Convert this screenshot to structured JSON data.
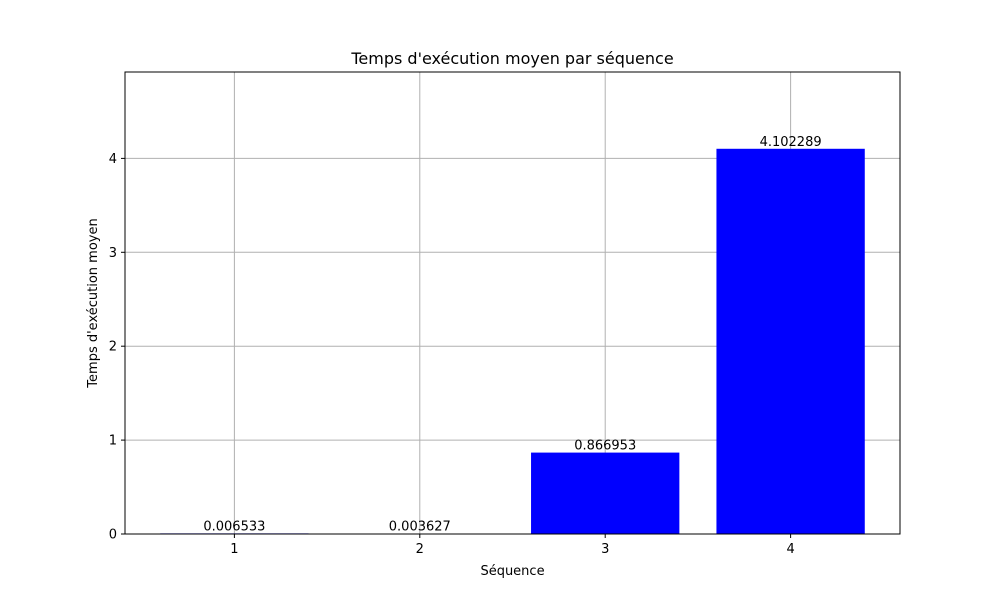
{
  "chart_data": {
    "type": "bar",
    "title": "Temps d'exécution moyen par séquence",
    "xlabel": "Séquence",
    "ylabel": "Temps d'exécution moyen",
    "categories": [
      "1",
      "2",
      "3",
      "4"
    ],
    "values": [
      0.006533,
      0.003627,
      0.866953,
      4.102289
    ],
    "value_labels": [
      "0.006533",
      "0.003627",
      "0.866953",
      "4.102289"
    ],
    "yticks": [
      0,
      1,
      2,
      3,
      4
    ],
    "ylim": [
      0,
      4.92
    ],
    "grid": true,
    "bar_color": "#0000ff",
    "grid_color": "#b0b0b0"
  }
}
